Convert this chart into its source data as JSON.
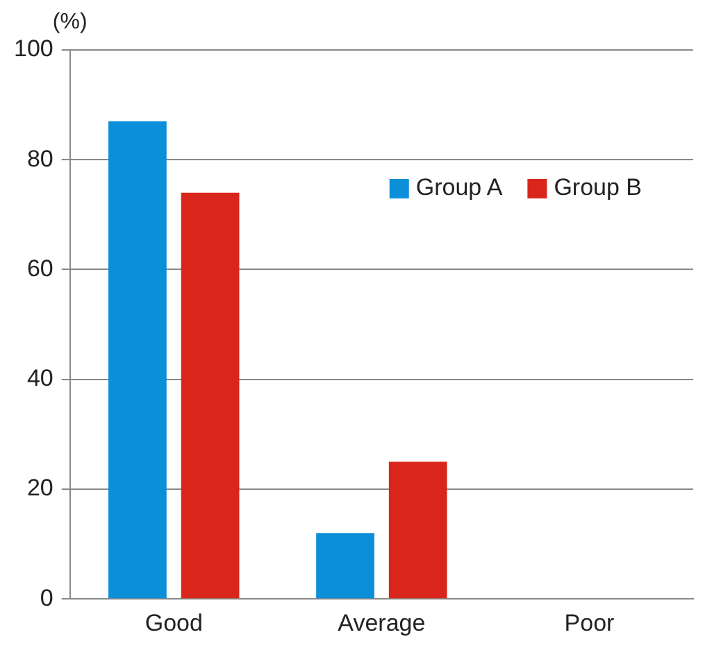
{
  "chart_data": {
    "type": "bar",
    "ylabel": "(%)",
    "categories": [
      "Good",
      "Average",
      "Poor"
    ],
    "series": [
      {
        "name": "Group A",
        "color": "#0b8fd9",
        "values": [
          87,
          12,
          0
        ]
      },
      {
        "name": "Group B",
        "color": "#d9261c",
        "values": [
          74,
          25,
          0
        ]
      }
    ],
    "ylim": [
      0,
      100
    ],
    "yticks": [
      0,
      20,
      40,
      60,
      80,
      100
    ],
    "grid": "y",
    "legend": "top right"
  }
}
